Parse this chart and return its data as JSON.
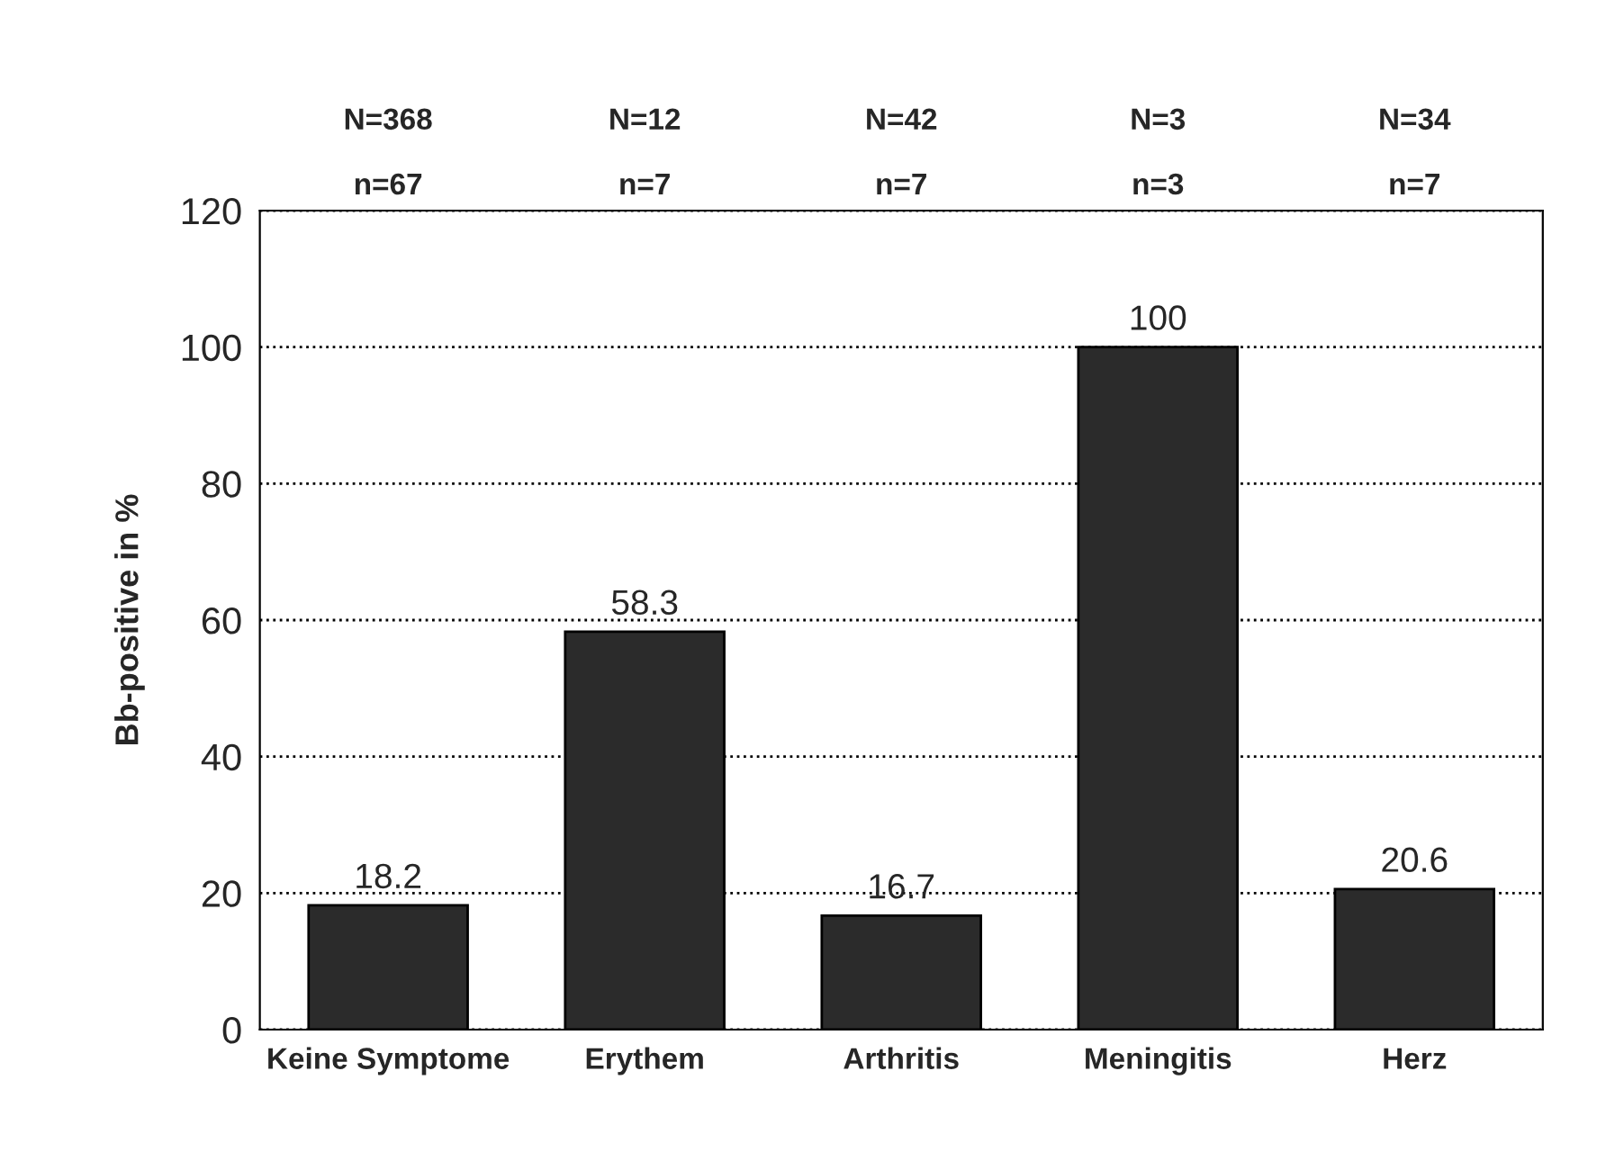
{
  "chart_data": {
    "type": "bar",
    "ylabel": "Bb-positive in %",
    "categories": [
      "Keine Symptome",
      "Erythem",
      "Arthritis",
      "Meningitis",
      "Herz"
    ],
    "values": [
      18.2,
      58.3,
      16.7,
      100,
      20.6
    ],
    "color": "#2b2b2b",
    "data_labels": true,
    "ylim": [
      0,
      120
    ],
    "yticks": [
      0,
      20,
      40,
      60,
      80,
      100,
      120
    ],
    "grid": "y",
    "line_style": "dotted",
    "annotations": [
      "N=368",
      "n=67",
      "N=12",
      "n=7",
      "N=42",
      "n=7",
      "N=3",
      "n=3",
      "N=34",
      "n=7"
    ]
  }
}
